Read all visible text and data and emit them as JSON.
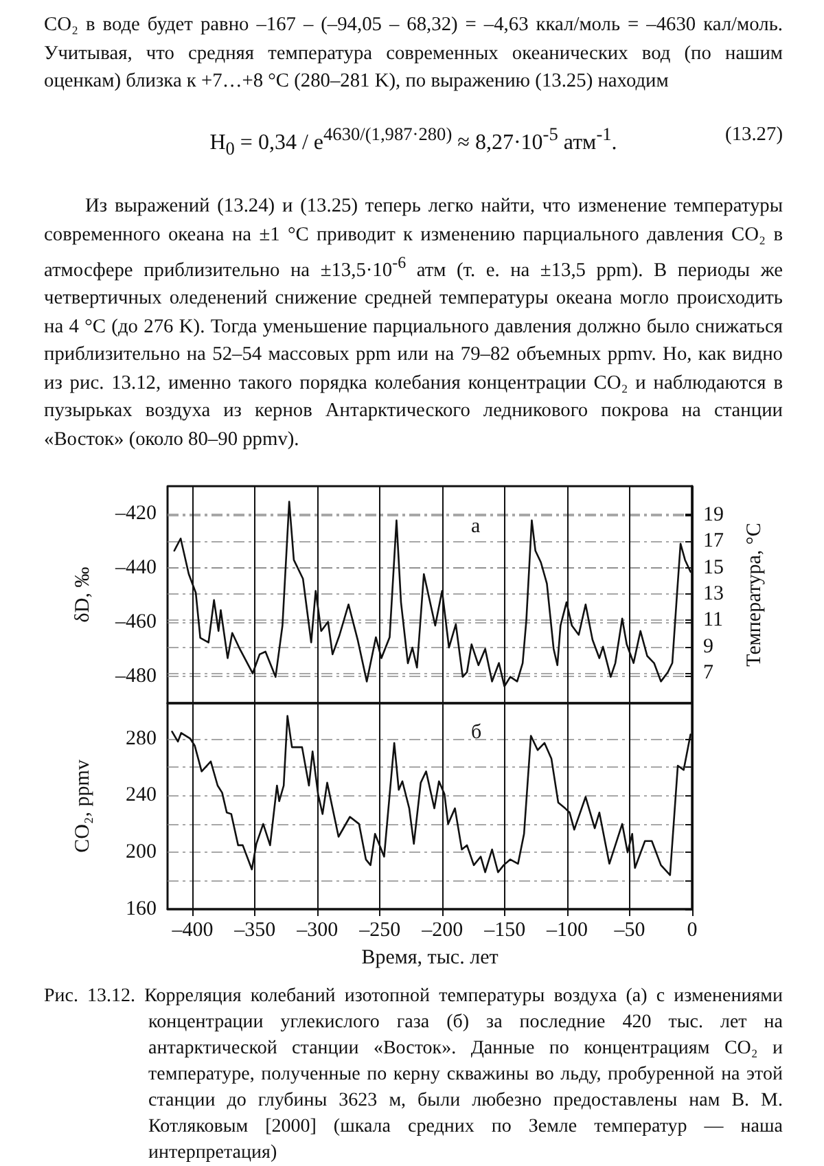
{
  "chart_data": [
    {
      "type": "line",
      "ylabel": "δD, ‰",
      "y2label": "Температура, °C",
      "xlim": [
        -420,
        0
      ],
      "xticks": [
        -400,
        -350,
        -300,
        -250,
        -200,
        -150,
        -100,
        -50,
        0
      ],
      "ylim": [
        -490,
        -410
      ],
      "yticks": [
        {
          "value": -480,
          "label": "–480"
        },
        {
          "value": -460,
          "label": "–460"
        },
        {
          "value": -440,
          "label": "–440"
        },
        {
          "value": -420,
          "label": "–420"
        }
      ],
      "y2lim": [
        4.7,
        21.2
      ],
      "y2ticks": [
        7,
        9,
        11,
        13,
        15,
        17,
        19
      ],
      "tick_labels": "y",
      "grid": true,
      "marker": "none",
      "line_style": "solid",
      "annotations": [
        "а",
        "CO₂ в воде будет равно –167 – (–94,05 – 68,32) = –4,63 ккал/моль = –4630 кал/моль. Учитывая, что средняя температура современных океанических вод (по нашим оценкам) близка к +7…+8 °C (280–281 K), по выражению (13.25) находим",
        "H$_{0}$ = 0,34 / e$^{4630/(1,987·280)}$ ≈ 8,27·10$^{-5}$ атм$^{-1}$.",
        "(13.27)",
        "Из выражений (13.24) и (13.25) теперь легко найти, что изменение температуры современного океана на ±1 °C приводит к изменению парциального давления CO₂ в атмосфере приблизительно на ±13,5·10$^{-6}$ атм (т. е. на ±13,5 ppm). В периоды же четвертичных оледенений снижение средней температуры океана могло происходить на 4 °C (до 276 K). Тогда уменьшение парциального давления должно было снижаться приблизительно на 52–54 массовых ppm или на 79–82 объемных ppmv. Но, как видно из рис. 13.12, именно такого порядка колебания концентрации CO₂ и наблюдаются в пузырьках воздуха из кернов Антарктического ледникового покрова на станции «Восток» (около 80–90 ppmv)."
      ],
      "x": [
        -414.6,
        -409.5,
        -403,
        -397.4,
        -393.8,
        -387.2,
        -382.8,
        -379.2,
        -377.4,
        -371.9,
        -368.2,
        -362.7,
        -351.8,
        -346.3,
        -341.6,
        -333.5,
        -328,
        -322.6,
        -318.9,
        -311.6,
        -305,
        -301.4,
        -297,
        -291.5,
        -287.9,
        -282.4,
        -275.1,
        -267.8,
        -260.5,
        -253.2,
        -248.8,
        -242.2,
        -236.7,
        -233.1,
        -227.6,
        -224,
        -220.3,
        -214.8,
        -205.7,
        -200.2,
        -194.7,
        -189.2,
        -183.7,
        -180.3,
        -176.6,
        -171.1,
        -165.7,
        -160.2,
        -154.7,
        -150.3,
        -145.6,
        -140.1,
        -135.7,
        -132.8,
        -128.4,
        -125.5,
        -121.1,
        -116.3,
        -110.9,
        -107.9,
        -105.4,
        -100.6,
        -96.3,
        -90.8,
        -85.3,
        -79.8,
        -74.3,
        -71.4,
        -65.2,
        -61.5,
        -56,
        -52.4,
        -46.9,
        -41.4,
        -36,
        -30.5,
        -25,
        -19.5,
        -15.9,
        -12.2,
        -9.3,
        -5.7,
        -1.3
      ],
      "series": [
        {
          "color": "#111111",
          "values": [
            -433.8,
            -429.3,
            -442.4,
            -449.3,
            -465.9,
            -467.6,
            -452,
            -463.4,
            -455.7,
            -473.4,
            -464.1,
            -469.5,
            -479,
            -472,
            -471,
            -480.3,
            -461.4,
            -415.7,
            -437.2,
            -444.1,
            -467.6,
            -448.6,
            -463.4,
            -460,
            -472,
            -465,
            -453.6,
            -466.6,
            -482,
            -465.7,
            -473.4,
            -465.7,
            -422.6,
            -452.8,
            -475.3,
            -469.5,
            -476.9,
            -442.4,
            -461.4,
            -448.6,
            -469.5,
            -460.9,
            -480.3,
            -478.6,
            -468.3,
            -476,
            -470,
            -482,
            -475.2,
            -483.8,
            -480.3,
            -482,
            -475.2,
            -459.7,
            -422.6,
            -433.8,
            -438.1,
            -445.9,
            -470,
            -476,
            -461.4,
            -452.8,
            -461.4,
            -464.8,
            -453.6,
            -466.6,
            -473.4,
            -469.2,
            -480.3,
            -475.2,
            -458.8,
            -468.3,
            -475.2,
            -463.4,
            -472.6,
            -475.2,
            -482,
            -478.6,
            -475.2,
            -450.2,
            -431.2,
            -437.2,
            -441.6
          ]
        }
      ]
    },
    {
      "type": "line",
      "ylabel": "CO₂, ppmv",
      "xlabel": "Время, тыс. лет",
      "xlim": [
        -420,
        0
      ],
      "xticks": [
        {
          "value": -400,
          "label": "–400"
        },
        {
          "value": -350,
          "label": "–350"
        },
        {
          "value": -300,
          "label": "–300"
        },
        {
          "value": -250,
          "label": "–250"
        },
        {
          "value": -200,
          "label": "–200"
        },
        {
          "value": -150,
          "label": "–150"
        },
        {
          "value": -100,
          "label": "–100"
        },
        {
          "value": -50,
          "label": "–50"
        },
        0
      ],
      "ylim": [
        160,
        305
      ],
      "yticks": [
        160,
        {
          "value": 180,
          "label": null
        },
        200,
        {
          "value": 220,
          "label": null
        },
        240,
        {
          "value": 260,
          "label": null
        },
        280
      ],
      "grid": true,
      "marker": "none",
      "line_style": "solid",
      "annotations": [
        "б",
        "Рис. 13.12. Корреляция колебаний изотопной температуры воздуха (а) с изменениями концентрации углекислого газа (б) за последние 420 тыс. лет на антарктической станции «Восток». Данные по концентрациям CO₂ и температуре, полученные по керну скважины во льду, пробуренной на этой станции до глубины 3623 м, были любезно предоставлены нам В. М. Котляковым [2000] (шкала средних по Земле температур — наша интерпретация)"
      ],
      "x": [
        -416.4,
        -411.7,
        -409.1,
        -401.8,
        -398.2,
        -392.7,
        -385.4,
        -379.9,
        -376.3,
        -372.6,
        -369,
        -363.5,
        -359.8,
        -352.5,
        -348.9,
        -343.4,
        -337.9,
        -332.4,
        -330.6,
        -327,
        -324,
        -320.4,
        -312.3,
        -306.8,
        -303.9,
        -299.5,
        -295.9,
        -292.2,
        -283.1,
        -274,
        -266.7,
        -261.2,
        -257.5,
        -253.9,
        -246.6,
        -238.5,
        -234.9,
        -232,
        -226.5,
        -222.8,
        -217.3,
        -213,
        -206.4,
        -202.7,
        -198.3,
        -195.4,
        -189.9,
        -184.4,
        -180.3,
        -174.8,
        -169.3,
        -165.7,
        -160.2,
        -155.4,
        -150.9,
        -145.6,
        -139.4,
        -134.6,
        -129.1,
        -123.7,
        -118.2,
        -112.7,
        -107.2,
        -101.7,
        -98.1,
        -94.4,
        -85.3,
        -78,
        -74.3,
        -66.3,
        -56,
        -51.7,
        -48,
        -45.8,
        -37.8,
        -32.3,
        -25,
        -17.7,
        -11.5,
        -6.8,
        -1.3
      ],
      "series": [
        {
          "color": "#111111",
          "values": [
            285,
            278,
            284,
            280,
            275,
            257,
            264,
            247,
            242,
            228,
            227,
            205,
            205,
            188,
            206,
            220,
            205,
            247,
            236,
            247,
            296,
            274,
            274,
            247,
            271,
            241,
            227,
            249,
            211,
            225,
            220,
            195,
            191,
            213,
            197,
            277,
            244,
            250,
            231,
            206,
            249,
            257,
            231,
            250,
            241,
            220,
            231,
            202,
            205,
            191,
            197,
            186,
            202,
            186,
            191,
            195,
            192,
            213,
            282,
            272,
            277,
            266,
            235,
            231,
            228,
            216,
            239,
            217,
            228,
            192,
            220,
            200,
            213,
            189,
            208,
            208,
            191,
            184,
            261,
            258,
            283
          ]
        }
      ]
    }
  ]
}
